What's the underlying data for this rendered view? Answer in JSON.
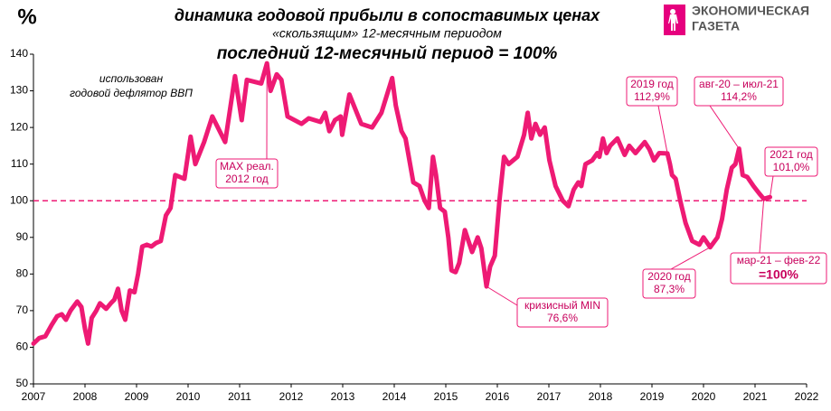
{
  "chart_data": {
    "type": "line",
    "title": "динамика годовой прибыли в сопоставимых ценах",
    "subtitle": "«скользящим» 12-месячным периодом",
    "subtitle2": "последний 12-месячный период = 100%",
    "y_label": "%",
    "note": [
      "использован",
      "годовой дефлятор ВВП"
    ],
    "logo": [
      "ЭКОНОМИЧЕСКАЯ",
      "ГАЗЕТА"
    ],
    "color": "#ee1a74",
    "reference_line": 100,
    "xlim": [
      2007,
      2022
    ],
    "xticks": [
      2007,
      2008,
      2009,
      2010,
      2011,
      2012,
      2013,
      2014,
      2015,
      2016,
      2017,
      2018,
      2019,
      2020,
      2021,
      2022
    ],
    "ylim": [
      50,
      140
    ],
    "yticks": [
      50,
      60,
      70,
      80,
      90,
      100,
      110,
      120,
      130,
      140
    ],
    "grid": false,
    "x": [
      2007,
      2007.11,
      2007.23,
      2007.35,
      2007.46,
      2007.55,
      2007.63,
      2007.72,
      2007.85,
      2007.93,
      2008,
      2008.06,
      2008.13,
      2008.22,
      2008.29,
      2008.41,
      2008.5,
      2008.57,
      2008.64,
      2008.71,
      2008.78,
      2008.87,
      2008.96,
      2009.03,
      2009.11,
      2009.2,
      2009.29,
      2009.38,
      2009.47,
      2009.57,
      2009.66,
      2009.75,
      2009.93,
      2010.05,
      2010.14,
      2010.31,
      2010.47,
      2010.72,
      2010.91,
      2011.04,
      2011.14,
      2011.42,
      2011.53,
      2011.6,
      2011.72,
      2011.81,
      2011.93,
      2012.2,
      2012.34,
      2012.57,
      2012.66,
      2012.74,
      2012.85,
      2012.96,
      2012.99,
      2013.13,
      2013.36,
      2013.57,
      2013.75,
      2013.96,
      2014.03,
      2014.14,
      2014.22,
      2014.37,
      2014.49,
      2014.59,
      2014.67,
      2014.75,
      2014.81,
      2014.89,
      2014.98,
      2015.05,
      2015.11,
      2015.19,
      2015.26,
      2015.37,
      2015.44,
      2015.51,
      2015.62,
      2015.69,
      2015.79,
      2015.86,
      2015.95,
      2016.04,
      2016.13,
      2016.22,
      2016.39,
      2016.52,
      2016.59,
      2016.66,
      2016.74,
      2016.83,
      2016.92,
      2017.01,
      2017.13,
      2017.27,
      2017.38,
      2017.48,
      2017.57,
      2017.63,
      2017.71,
      2017.84,
      2017.94,
      2017.98,
      2018.05,
      2018.12,
      2018.19,
      2018.33,
      2018.47,
      2018.56,
      2018.68,
      2018.86,
      2018.95,
      2019.04,
      2019.14,
      2019.3,
      2019.35,
      2019.39,
      2019.46,
      2019.55,
      2019.65,
      2019.78,
      2019.92,
      2020,
      2020.13,
      2020.27,
      2020.36,
      2020.45,
      2020.55,
      2020.62,
      2020.69,
      2020.76,
      2020.85,
      2020.97,
      2021.08,
      2021.17,
      2021.29
    ],
    "values": [
      61,
      62.5,
      63,
      66,
      68.5,
      69,
      67.5,
      70,
      72.5,
      71,
      65,
      61,
      68,
      70,
      72,
      70.5,
      72,
      73,
      76,
      70,
      67.5,
      75.5,
      75,
      80,
      87.5,
      88,
      87.5,
      88.5,
      89,
      96,
      98,
      107,
      106,
      117.5,
      110,
      116,
      123,
      116,
      134,
      122,
      133,
      132,
      137.5,
      130,
      134.5,
      133,
      123,
      121,
      122.5,
      121.5,
      124,
      119,
      122,
      123,
      118,
      129,
      121,
      120,
      124,
      133.5,
      126,
      119,
      117,
      105,
      104,
      100,
      98,
      112,
      107,
      98,
      97,
      90,
      81,
      80.5,
      83,
      92,
      89,
      86,
      90,
      87,
      76.6,
      82,
      85,
      100,
      112,
      110,
      112,
      118,
      124,
      117,
      121,
      118,
      120,
      111,
      104,
      100,
      98.5,
      103,
      105,
      104,
      110,
      111,
      113,
      112,
      117,
      113,
      115,
      117,
      112.5,
      115,
      113,
      116,
      114,
      111,
      113,
      112.9,
      110,
      107,
      106,
      100,
      94,
      89,
      88,
      90,
      87.3,
      90,
      95,
      103,
      109,
      110,
      114.2,
      107,
      106.5,
      104,
      102,
      100.5,
      101
    ],
    "annotations": [
      {
        "lines": [
          "MAX реал.",
          "2012 год"
        ]
      },
      {
        "lines": [
          "кризисный  MIN",
          "76,6%"
        ]
      },
      {
        "lines": [
          "2019 год",
          "112,9%"
        ]
      },
      {
        "lines": [
          "2020 год",
          "87,3%"
        ]
      },
      {
        "lines": [
          "авг-20 – июл-21",
          "114,2%"
        ]
      },
      {
        "lines": [
          "2021 год",
          "101,0%"
        ]
      },
      {
        "lines": [
          "мар-21 – фев-22",
          "=100%"
        ]
      }
    ]
  }
}
